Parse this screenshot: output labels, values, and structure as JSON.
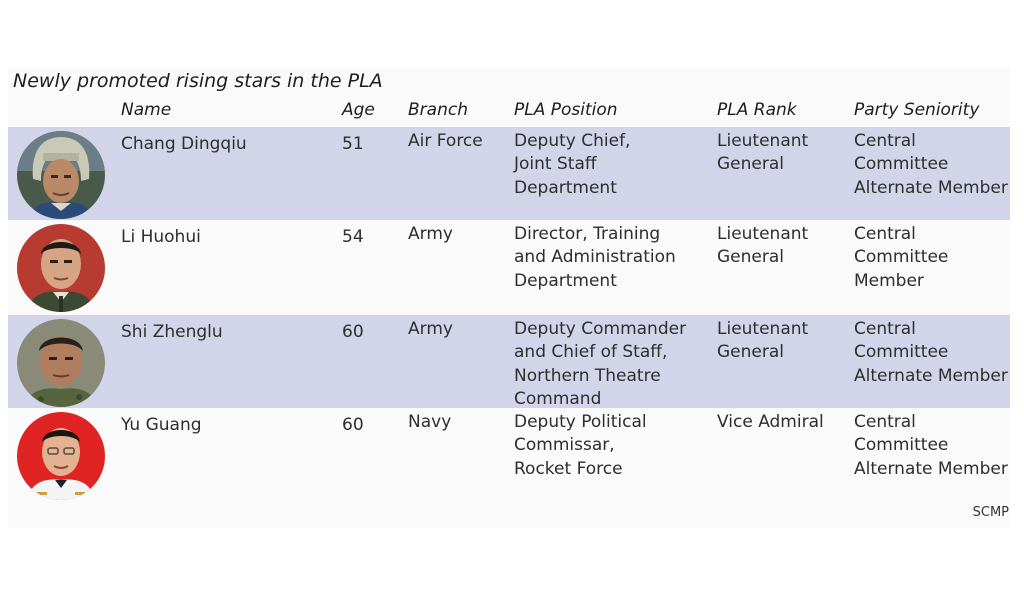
{
  "title": "Newly promoted rising stars in the PLA",
  "headers": {
    "name": "Name",
    "age": "Age",
    "branch": "Branch",
    "position": "PLA Position",
    "rank": "PLA Rank",
    "party": "Party Seniority"
  },
  "rows": [
    {
      "name": "Chang Dingqiu",
      "age": "51",
      "branch": "Air Force",
      "position": "Deputy Chief,\nJoint Staff\nDepartment",
      "rank": "Lieutenant\nGeneral",
      "party": "Central Committee\nAlternate Member",
      "avatar_icon": "pilot-helmet-portrait"
    },
    {
      "name": "Li Huohui",
      "age": "54",
      "branch": "Army",
      "position": "Director, Training\nand Administration\nDepartment",
      "rank": "Lieutenant\nGeneral",
      "party": "Central Committee\nMember",
      "avatar_icon": "army-officer-portrait"
    },
    {
      "name": "Shi Zhenglu",
      "age": "60",
      "branch": "Army",
      "position": "Deputy Commander\nand Chief of Staff,\nNorthern Theatre\nCommand",
      "rank": "Lieutenant\nGeneral",
      "party": "Central Committee\nAlternate Member",
      "avatar_icon": "army-officer-portrait"
    },
    {
      "name": "Yu Guang",
      "age": "60",
      "branch": "Navy",
      "position": "Deputy Political\nCommissar,\nRocket Force",
      "rank": "Vice Admiral",
      "party": "Central Committee\nAlternate Member",
      "avatar_icon": "navy-officer-portrait"
    }
  ],
  "source": "SCMP",
  "colors": {
    "row_shade": "#d2d4ea",
    "panel_bg": "#fafafa",
    "text": "#2e2e2e"
  }
}
